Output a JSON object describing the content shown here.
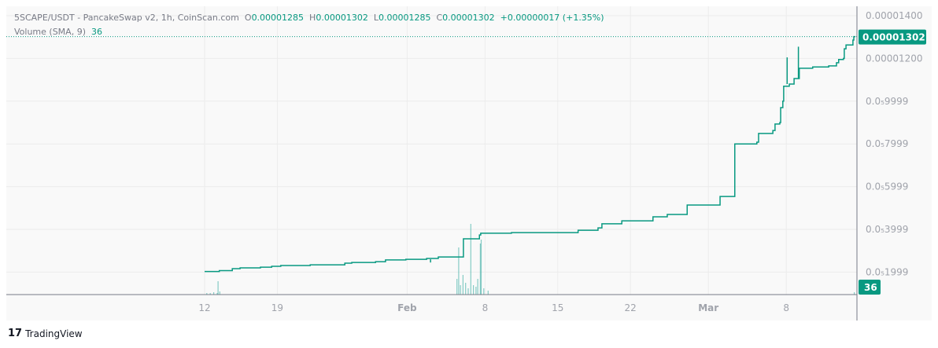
{
  "header": {
    "symbol": "5SCAPE/USDT - PancakeSwap v2, 1h, CoinScan.com",
    "o_label": "O",
    "o": "0.00001285",
    "h_label": "H",
    "h": "0.00001302",
    "l_label": "L",
    "l": "0.00001285",
    "c_label": "C",
    "c": "0.00001302",
    "change": "+0.00000017 (+1.35%)",
    "volume_label": "Volume (SMA, 9)",
    "volume_value": "36"
  },
  "branding": "TradingView",
  "colors": {
    "line": "#089981",
    "volume": "#26a69a",
    "grid": "#ececec",
    "axis_text": "#a0a3ab",
    "badge": "#089981"
  },
  "chart_data": {
    "type": "line",
    "step": true,
    "year": 2024,
    "ylim": [
      4e-07,
      1.45e-05
    ],
    "yticks": [
      {
        "value": 1.4e-05,
        "label": "0.00001400"
      },
      {
        "value": 1.2e-05,
        "label": "0.00001200"
      },
      {
        "value": 9.9999e-06,
        "label": "0.0₅9999"
      },
      {
        "value": 7.9999e-06,
        "label": "0.0₅7999"
      },
      {
        "value": 5.9999e-06,
        "label": "0.0₅5999"
      },
      {
        "value": 3.9999e-06,
        "label": "0.0₅3999"
      },
      {
        "value": 1.9999e-06,
        "label": "0.0₅1999"
      }
    ],
    "xticks": [
      {
        "date": "01-12",
        "label": "12",
        "bold": false
      },
      {
        "date": "01-19",
        "label": "19",
        "bold": false
      },
      {
        "date": "01-31 12:00",
        "label": "Feb",
        "bold": true
      },
      {
        "date": "02-08",
        "label": "8",
        "bold": false
      },
      {
        "date": "02-15",
        "label": "15",
        "bold": false
      },
      {
        "date": "02-22",
        "label": "22",
        "bold": false
      },
      {
        "date": "02-29 12:00",
        "label": "Mar",
        "bold": true
      },
      {
        "date": "03-08",
        "label": "8",
        "bold": false
      }
    ],
    "last_price_label": "0.00001302",
    "last_price": 1.302e-05,
    "volume_badge": "36",
    "series": [
      {
        "values": [
          [
            "01-12 00:00",
            2.03
          ],
          [
            "01-13 10:00",
            2.07
          ],
          [
            "01-14 16:00",
            2.16
          ],
          [
            "01-15 10:00",
            2.2
          ],
          [
            "01-17 09:00",
            2.23
          ],
          [
            "01-18 11:00",
            2.27
          ],
          [
            "01-19 08:00",
            2.31
          ],
          [
            "01-22 04:00",
            2.34
          ],
          [
            "01-25 12:00",
            2.42
          ],
          [
            "01-26 04:00",
            2.45
          ],
          [
            "01-28 11:00",
            2.49
          ],
          [
            "01-29 10:00",
            2.57
          ],
          [
            "01-31 09:00",
            2.6
          ],
          [
            "02-02 09:00",
            2.64
          ],
          [
            "02-03 12:00",
            2.71
          ],
          [
            "02-05 22:00",
            3.56
          ],
          [
            "02-07 11:00",
            3.74
          ],
          [
            "02-07 14:00",
            3.82
          ],
          [
            "02-10 13:00",
            3.85
          ],
          [
            "02-16 23:00",
            3.96
          ],
          [
            "02-18 21:00",
            4.07
          ],
          [
            "02-19 06:00",
            4.26
          ],
          [
            "02-21 04:00",
            4.4
          ],
          [
            "02-24 04:00",
            4.59
          ],
          [
            "02-25 13:00",
            4.7
          ],
          [
            "02-27 11:00",
            5.14
          ],
          [
            "03-01 15:00",
            5.54
          ],
          [
            "03-03 01:00",
            8.0
          ],
          [
            "03-05 04:00",
            8.08
          ],
          [
            "03-05 08:00",
            8.49
          ],
          [
            "03-06 17:00",
            8.63
          ],
          [
            "03-06 22:00",
            8.93
          ],
          [
            "03-07 09:00",
            9.0
          ],
          [
            "03-07 11:00",
            9.7
          ],
          [
            "03-07 16:00",
            10.0
          ],
          [
            "03-07 18:00",
            10.7
          ],
          [
            "03-08 07:00",
            10.8
          ],
          [
            "03-08 18:00",
            11.06
          ],
          [
            "03-09 06:00",
            11.54
          ],
          [
            "03-10 13:00",
            11.6
          ],
          [
            "03-12 02:00",
            11.65
          ],
          [
            "03-12 20:00",
            11.8
          ],
          [
            "03-13 01:00",
            11.95
          ],
          [
            "03-13 12:00",
            12.0
          ],
          [
            "03-13 14:00",
            12.45
          ],
          [
            "03-13 18:00",
            12.63
          ],
          [
            "03-14 10:00",
            12.86
          ],
          [
            "03-14 12:00",
            13.02
          ]
        ],
        "unit": "1e-6"
      }
    ],
    "wicks": [
      [
        "02-02 18:00",
        2.45,
        2.6
      ],
      [
        "03-08 02:00",
        10.8,
        12.05
      ],
      [
        "03-09 04:00",
        11.06,
        12.55
      ]
    ],
    "volume": [
      [
        "01-12 04:00",
        2
      ],
      [
        "01-12 12:00",
        2
      ],
      [
        "01-12 20:00",
        3
      ],
      [
        "01-13 04:00",
        2
      ],
      [
        "01-13 06:00",
        17
      ],
      [
        "01-13 10:00",
        4
      ],
      [
        "02-05 06:00",
        20
      ],
      [
        "02-05 10:00",
        60
      ],
      [
        "02-05 14:00",
        12
      ],
      [
        "02-05 20:00",
        25
      ],
      [
        "02-06 02:00",
        15
      ],
      [
        "02-06 08:00",
        8
      ],
      [
        "02-06 14:00",
        90
      ],
      [
        "02-06 20:00",
        12
      ],
      [
        "02-07 02:00",
        10
      ],
      [
        "02-07 06:00",
        20
      ],
      [
        "02-07 12:00",
        65
      ],
      [
        "02-07 14:00",
        70
      ],
      [
        "02-07 20:00",
        8
      ],
      [
        "02-08 06:00",
        5
      ],
      [
        "03-14 12:00",
        3
      ]
    ]
  }
}
